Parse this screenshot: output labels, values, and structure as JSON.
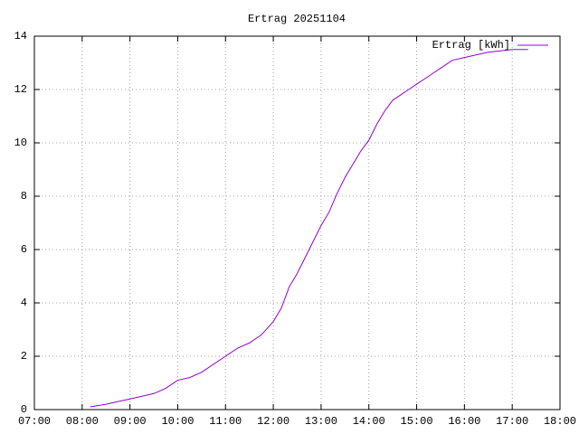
{
  "chart_data": {
    "type": "line",
    "title": "Ertrag 20251104",
    "x": [
      "08:10",
      "08:30",
      "08:45",
      "09:00",
      "09:15",
      "09:30",
      "09:45",
      "10:00",
      "10:15",
      "10:30",
      "10:45",
      "11:00",
      "11:15",
      "11:30",
      "11:45",
      "12:00",
      "12:10",
      "12:20",
      "12:30",
      "12:40",
      "12:50",
      "13:00",
      "13:10",
      "13:20",
      "13:30",
      "13:40",
      "13:50",
      "14:00",
      "14:10",
      "14:20",
      "14:30",
      "14:40",
      "14:50",
      "15:00",
      "15:15",
      "15:30",
      "15:45",
      "16:00",
      "16:15",
      "16:30",
      "16:45",
      "17:00",
      "17:20"
    ],
    "series": [
      {
        "name": "Ertrag [kWh]",
        "color": "#9400d3",
        "values": [
          0.1,
          0.2,
          0.3,
          0.4,
          0.5,
          0.6,
          0.8,
          1.1,
          1.2,
          1.4,
          1.7,
          2.0,
          2.3,
          2.5,
          2.8,
          3.3,
          3.8,
          4.6,
          5.1,
          5.7,
          6.3,
          6.9,
          7.4,
          8.1,
          8.7,
          9.2,
          9.7,
          10.1,
          10.7,
          11.2,
          11.6,
          11.8,
          12.0,
          12.2,
          12.5,
          12.8,
          13.1,
          13.2,
          13.3,
          13.4,
          13.45,
          13.5,
          13.5
        ]
      }
    ],
    "xlim": [
      "07:00",
      "18:00"
    ],
    "xticks": [
      "07:00",
      "08:00",
      "09:00",
      "10:00",
      "11:00",
      "12:00",
      "13:00",
      "14:00",
      "15:00",
      "16:00",
      "17:00",
      "18:00"
    ],
    "ylim": [
      0,
      14
    ],
    "yticks": [
      0,
      2,
      4,
      6,
      8,
      10,
      12,
      14
    ],
    "grid": true,
    "legend": "top-right"
  }
}
